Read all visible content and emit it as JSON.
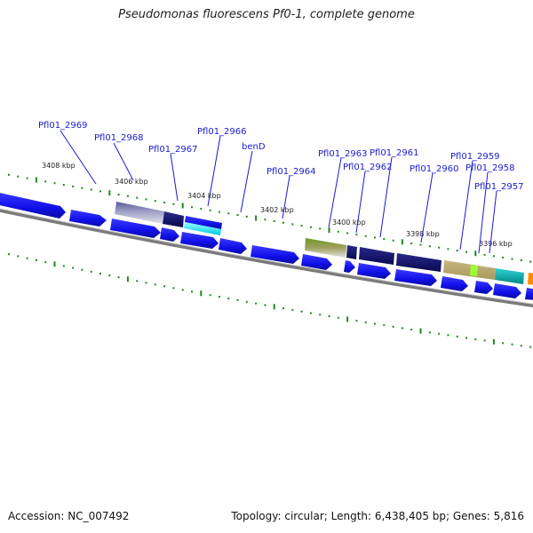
{
  "title": "Pseudomonas fluorescens Pf0-1, complete genome",
  "accession": "Accession: NC_007492",
  "summary": "Topology: circular; Length: 6,438,405 bp; Genes: 5,816",
  "kbp_labels": [
    "3408 kbp",
    "3406 kbp",
    "3404 kbp",
    "3402 kbp",
    "3400 kbp",
    "3398 kbp",
    "3396 kbp"
  ],
  "gene_labels": [
    "Pfl01_2969",
    "Pfl01_2968",
    "Pfl01_2967",
    "Pfl01_2966",
    "benD",
    "Pfl01_2964",
    "Pfl01_2963",
    "Pfl01_2962",
    "Pfl01_2961",
    "Pfl01_2960",
    "Pfl01_2959",
    "Pfl01_2958",
    "Pfl01_2957"
  ],
  "colors": {
    "gene_blue": "#1010e8",
    "tick_green": "#1a8a1a",
    "backbone": "#808080",
    "label_blue": "#1a1ad0"
  }
}
